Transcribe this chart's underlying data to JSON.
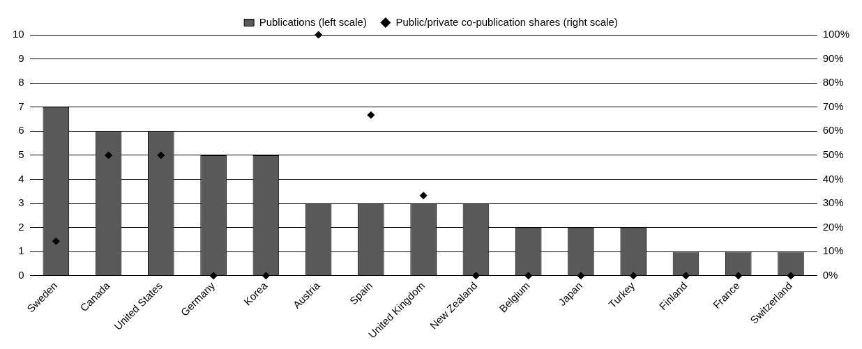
{
  "chart_data": {
    "type": "bar",
    "categories": [
      "Sweden",
      "Canada",
      "United States",
      "Germany",
      "Korea",
      "Austria",
      "Spain",
      "United Kingdom",
      "New Zealand",
      "Belgium",
      "Japan",
      "Turkey",
      "Finland",
      "France",
      "Switzerland"
    ],
    "series": [
      {
        "name": "Publications (left scale)",
        "color": "#595959",
        "values": [
          7,
          6,
          6,
          5,
          5,
          3,
          3,
          3,
          3,
          2,
          2,
          2,
          1,
          1,
          1
        ]
      },
      {
        "name": "Public/private co-publication shares (right scale)",
        "type": "scatter",
        "axis": "y2",
        "color": "#000000",
        "marker": "diamond",
        "x": [
          "Sweden",
          "Canada",
          "United States",
          "Germany",
          "Korea",
          "Austria",
          "Spain",
          "United Kingdom",
          "New Zealand",
          "Belgium",
          "Japan",
          "Turkey",
          "Finland",
          "France",
          "Switzerland"
        ],
        "values": [
          14.3,
          50,
          50,
          0,
          0,
          100,
          66.7,
          33.3,
          0,
          0,
          0,
          0,
          0,
          0,
          0
        ]
      }
    ],
    "ylim": [
      0,
      10
    ],
    "yticks": [
      0,
      1,
      2,
      3,
      4,
      5,
      6,
      7,
      8,
      9,
      10
    ],
    "y2lim": [
      0,
      100
    ],
    "y2ticks": [
      {
        "value": 0,
        "label": "0%"
      },
      {
        "value": 10,
        "label": "10%"
      },
      {
        "value": 20,
        "label": "20%"
      },
      {
        "value": 30,
        "label": "30%"
      },
      {
        "value": 40,
        "label": "40%"
      },
      {
        "value": 50,
        "label": "50%"
      },
      {
        "value": 60,
        "label": "60%"
      },
      {
        "value": 70,
        "label": "70%"
      },
      {
        "value": 80,
        "label": "80%"
      },
      {
        "value": 90,
        "label": "90%"
      },
      {
        "value": 100,
        "label": "100%"
      }
    ],
    "grid": "y",
    "legend": "top"
  }
}
